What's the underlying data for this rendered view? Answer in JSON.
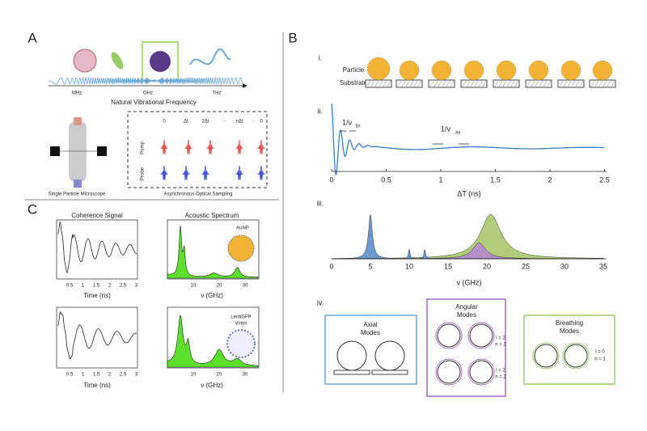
{
  "panel_a": {
    "label": "A",
    "freq": [
      "MHz",
      "GHz",
      "THz"
    ],
    "freq_title": "Natural Vibrational Frequency",
    "microscope_caption": "Single Particle Microscope",
    "sampling_caption": "Asynchronous Optical Sampling",
    "delays": [
      "0",
      "Δt",
      "2Δt",
      "···",
      "nΔt",
      "···",
      "0"
    ],
    "pump": "Pump",
    "probe": "Probe"
  },
  "panel_b": {
    "label": "B",
    "i": {
      "label": "i.",
      "particle": "Particle",
      "substrate": "Substrate"
    },
    "ii": {
      "label": "ii.",
      "xticks": [
        "0",
        "0.5",
        "1",
        "1.5",
        "2",
        "2.5"
      ],
      "xlabel": "ΔT  (ns)",
      "br": "1/ν",
      "br_sub": "br",
      "ax": "1/ν",
      "ax_sub": "ax"
    },
    "iii": {
      "label": "iii.",
      "xticks": [
        "0",
        "5",
        "10",
        "15",
        "20",
        "25",
        "30",
        "35"
      ],
      "xlabel": "ν (GHz)"
    },
    "iv": {
      "label": "iv.",
      "axial": [
        "Axial",
        "Modes"
      ],
      "angular": [
        "Angular",
        "Modes"
      ],
      "breathing": [
        "Breathing",
        "Modes"
      ],
      "angular_idx": [
        "l = 2",
        "n = 1",
        "l = 2",
        "n = 2"
      ],
      "breathing_idx": [
        "l = 0",
        "n = 1"
      ]
    }
  },
  "panel_c": {
    "label": "C",
    "coherence_title": "Coherence Signal",
    "spectrum_title": "Acoustic Spectrum",
    "time_ticks": [
      "0.5",
      "1",
      "1.5",
      "2",
      "2.5",
      "3"
    ],
    "time_label": "Time (ns)",
    "freq_ticks": [
      "10",
      "20",
      "30"
    ],
    "freq_label": "ν (GHz)",
    "aunp": "AuNP",
    "virion": [
      "LentiGFP",
      "Virion"
    ]
  }
}
